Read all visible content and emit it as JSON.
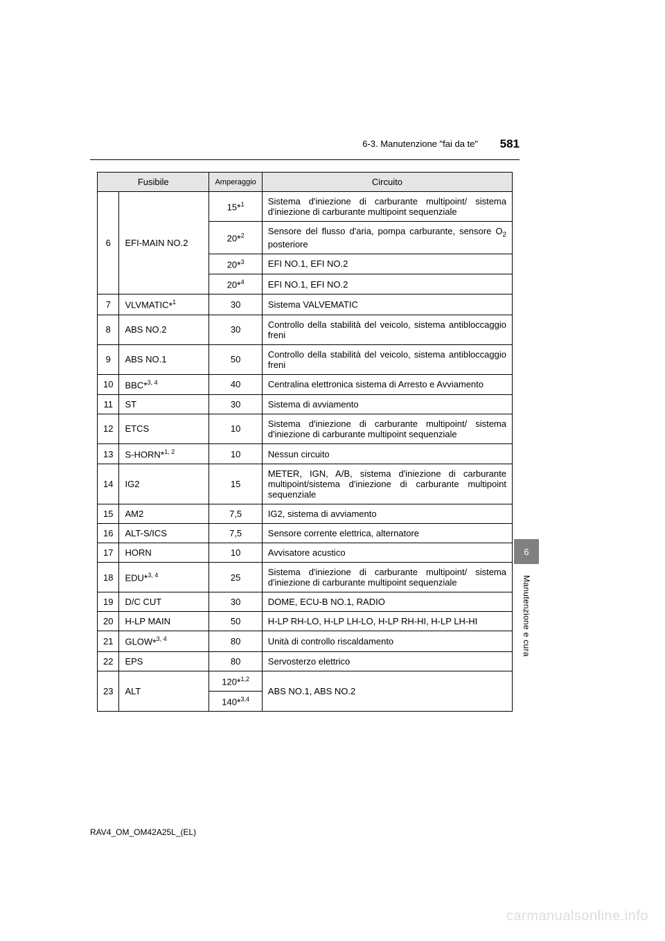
{
  "header": {
    "section": "6-3. Manutenzione \"fai da te\"",
    "page": "581"
  },
  "table": {
    "headers": {
      "fuse": "Fusibile",
      "amp": "Amperaggio",
      "circuit": "Circuito"
    },
    "row6": {
      "num": "6",
      "name": "EFI-MAIN NO.2",
      "a1": "15",
      "a1sup": "1",
      "c1": "Sistema d'iniezione di carburante multipoint/ sistema d'iniezione di carburante multipoint sequenziale",
      "a2": "20",
      "a2sup": "2",
      "c2a": "Sensore del flusso d'aria, pompa carburante, sensore O",
      "c2sub": "2",
      "c2b": " posteriore",
      "a3": "20",
      "a3sup": "3",
      "c3": "EFI NO.1, EFI NO.2",
      "a4": "20",
      "a4sup": "4",
      "c4": "EFI NO.1, EFI NO.2"
    },
    "rows": [
      {
        "num": "7",
        "name": "VLVMATIC",
        "nameSup": "1",
        "amp": "30",
        "circuit": "Sistema VALVEMATIC"
      },
      {
        "num": "8",
        "name": "ABS NO.2",
        "amp": "30",
        "circuit": "Controllo della stabilità del veicolo, sistema antibloccaggio freni"
      },
      {
        "num": "9",
        "name": "ABS NO.1",
        "amp": "50",
        "circuit": "Controllo della stabilità del veicolo, sistema antibloccaggio freni"
      },
      {
        "num": "10",
        "name": "BBC",
        "nameSup": "3, 4",
        "amp": "40",
        "circuit": "Centralina elettronica sistema di Arresto e Avviamento"
      },
      {
        "num": "11",
        "name": "ST",
        "amp": "30",
        "circuit": "Sistema di avviamento"
      },
      {
        "num": "12",
        "name": "ETCS",
        "amp": "10",
        "circuit": "Sistema d'iniezione di carburante multipoint/ sistema d'iniezione di carburante multipoint sequenziale"
      },
      {
        "num": "13",
        "name": "S-HORN",
        "nameSup": "1, 2",
        "amp": "10",
        "circuit": "Nessun circuito"
      },
      {
        "num": "14",
        "name": "IG2",
        "amp": "15",
        "circuit": "METER, IGN, A/B, sistema d'iniezione di carburante multipoint/sistema d'iniezione di carburante multipoint sequenziale"
      },
      {
        "num": "15",
        "name": "AM2",
        "amp": "7,5",
        "circuit": "IG2, sistema di avviamento"
      },
      {
        "num": "16",
        "name": "ALT-S/ICS",
        "amp": "7,5",
        "circuit": "Sensore corrente elettrica, alternatore"
      },
      {
        "num": "17",
        "name": "HORN",
        "amp": "10",
        "circuit": "Avvisatore acustico"
      },
      {
        "num": "18",
        "name": "EDU",
        "nameSup": "3, 4",
        "amp": "25",
        "circuit": "Sistema d'iniezione di carburante multipoint/ sistema d'iniezione di carburante multipoint sequenziale"
      },
      {
        "num": "19",
        "name": "D/C CUT",
        "amp": "30",
        "circuit": "DOME, ECU-B NO.1, RADIO"
      },
      {
        "num": "20",
        "name": "H-LP MAIN",
        "amp": "50",
        "circuit": "H-LP RH-LO, H-LP LH-LO, H-LP RH-HI, H-LP LH-HI"
      },
      {
        "num": "21",
        "name": "GLOW",
        "nameSup": "3, 4",
        "amp": "80",
        "circuit": "Unità di controllo riscaldamento"
      },
      {
        "num": "22",
        "name": "EPS",
        "amp": "80",
        "circuit": "Servosterzo elettrico"
      }
    ],
    "row23": {
      "num": "23",
      "name": "ALT",
      "a1": "120",
      "a1sup": "1,2",
      "a2": "140",
      "a2sup": "3,4",
      "circuit": "ABS NO.1, ABS NO.2"
    }
  },
  "side": {
    "chapter": "6",
    "label": "Manutenzione e cura"
  },
  "footer": "RAV4_OM_OM42A25L_(EL)",
  "watermark": "carmanualsonline.info"
}
